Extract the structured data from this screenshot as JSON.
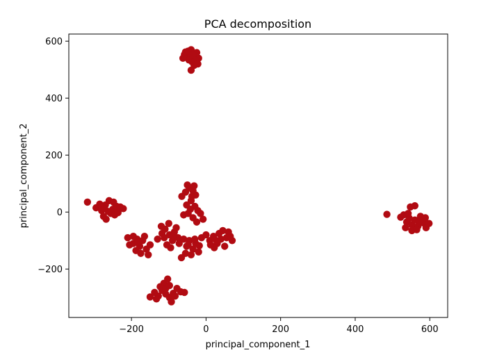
{
  "chart_data": {
    "type": "scatter",
    "title": "PCA decomposition",
    "xlabel": "principal_component_1",
    "ylabel": "principal_component_2",
    "xlim": [
      -368,
      648
    ],
    "ylim": [
      -370,
      625
    ],
    "xticks": [
      -200,
      0,
      200,
      400,
      600
    ],
    "yticks": [
      -200,
      0,
      200,
      400,
      600
    ],
    "xtick_labels": [
      "−200",
      "0",
      "200",
      "400",
      "600"
    ],
    "ytick_labels": [
      "−200",
      "0",
      "200",
      "400",
      "600"
    ],
    "grid": false,
    "marker_color": "#b10b12",
    "series": [
      {
        "points": [
          [
            -58,
            553
          ],
          [
            -50,
            548
          ],
          [
            -42,
            556
          ],
          [
            -35,
            545
          ],
          [
            -28,
            552
          ],
          [
            -20,
            540
          ],
          [
            -46,
            534
          ],
          [
            -38,
            528
          ],
          [
            -30,
            535
          ],
          [
            -55,
            562
          ],
          [
            -40,
            570
          ],
          [
            -25,
            560
          ],
          [
            -62,
            540
          ],
          [
            -32,
            515
          ],
          [
            -40,
            498
          ],
          [
            -22,
            520
          ],
          [
            -48,
            565
          ],
          [
            -36,
            552
          ],
          [
            -318,
            35
          ],
          [
            -295,
            15
          ],
          [
            -280,
            5
          ],
          [
            -270,
            25
          ],
          [
            -260,
            40
          ],
          [
            -250,
            10
          ],
          [
            -240,
            20
          ],
          [
            -255,
            -5
          ],
          [
            -275,
            -15
          ],
          [
            -268,
            -25
          ],
          [
            -245,
            -10
          ],
          [
            -230,
            18
          ],
          [
            -222,
            12
          ],
          [
            -262,
            2
          ],
          [
            -285,
            28
          ],
          [
            -248,
            35
          ],
          [
            -236,
            -2
          ],
          [
            -272,
            12
          ],
          [
            -210,
            -90
          ],
          [
            -195,
            -110
          ],
          [
            -185,
            -95
          ],
          [
            -178,
            -120
          ],
          [
            -170,
            -100
          ],
          [
            -160,
            -130
          ],
          [
            -150,
            -115
          ],
          [
            -188,
            -135
          ],
          [
            -175,
            -145
          ],
          [
            -195,
            -85
          ],
          [
            -205,
            -115
          ],
          [
            -165,
            -85
          ],
          [
            -155,
            -150
          ],
          [
            -182,
            -105
          ],
          [
            -130,
            -95
          ],
          [
            -118,
            -75
          ],
          [
            -110,
            -60
          ],
          [
            -98,
            -80
          ],
          [
            -90,
            -100
          ],
          [
            -105,
            -115
          ],
          [
            -85,
            -70
          ],
          [
            -75,
            -90
          ],
          [
            -120,
            -50
          ],
          [
            -100,
            -40
          ],
          [
            -80,
            -55
          ],
          [
            -95,
            -125
          ],
          [
            -112,
            -90
          ],
          [
            -88,
            -82
          ],
          [
            -72,
            -110
          ],
          [
            -60,
            -95
          ],
          [
            -52,
            -120
          ],
          [
            -45,
            -100
          ],
          [
            -35,
            -130
          ],
          [
            -28,
            -110
          ],
          [
            -20,
            -140
          ],
          [
            -12,
            -90
          ],
          [
            -55,
            -145
          ],
          [
            -40,
            -150
          ],
          [
            -66,
            -160
          ],
          [
            -30,
            -95
          ],
          [
            -48,
            -115
          ],
          [
            -18,
            -118
          ],
          [
            -65,
            55
          ],
          [
            -55,
            70
          ],
          [
            -45,
            85
          ],
          [
            -35,
            75
          ],
          [
            -28,
            60
          ],
          [
            -40,
            40
          ],
          [
            -52,
            25
          ],
          [
            -30,
            20
          ],
          [
            -22,
            5
          ],
          [
            -42,
            10
          ],
          [
            -60,
            -10
          ],
          [
            -35,
            -20
          ],
          [
            -25,
            -35
          ],
          [
            -15,
            -5
          ],
          [
            -8,
            -25
          ],
          [
            -48,
            -5
          ],
          [
            -38,
            55
          ],
          [
            -50,
            95
          ],
          [
            -32,
            92
          ],
          [
            0,
            -80
          ],
          [
            10,
            -100
          ],
          [
            20,
            -85
          ],
          [
            30,
            -110
          ],
          [
            40,
            -95
          ],
          [
            50,
            -120
          ],
          [
            60,
            -70
          ],
          [
            70,
            -100
          ],
          [
            55,
            -90
          ],
          [
            35,
            -75
          ],
          [
            22,
            -125
          ],
          [
            12,
            -115
          ],
          [
            45,
            -65
          ],
          [
            65,
            -85
          ],
          [
            28,
            -100
          ],
          [
            -150,
            -298
          ],
          [
            -138,
            -282
          ],
          [
            -128,
            -295
          ],
          [
            -118,
            -275
          ],
          [
            -108,
            -288
          ],
          [
            -98,
            -300
          ],
          [
            -88,
            -285
          ],
          [
            -78,
            -268
          ],
          [
            -68,
            -280
          ],
          [
            -113,
            -250
          ],
          [
            -103,
            -235
          ],
          [
            -123,
            -262
          ],
          [
            -93,
            -315
          ],
          [
            -83,
            -295
          ],
          [
            -58,
            -282
          ],
          [
            -133,
            -305
          ],
          [
            -108,
            -268
          ],
          [
            -98,
            -258
          ],
          [
            485,
            -8
          ],
          [
            522,
            -18
          ],
          [
            530,
            -10
          ],
          [
            538,
            -35
          ],
          [
            545,
            -22
          ],
          [
            552,
            -45
          ],
          [
            560,
            -28
          ],
          [
            568,
            -50
          ],
          [
            575,
            -15
          ],
          [
            582,
            -38
          ],
          [
            590,
            -55
          ],
          [
            598,
            -40
          ],
          [
            548,
            18
          ],
          [
            560,
            22
          ],
          [
            535,
            -55
          ],
          [
            552,
            -65
          ],
          [
            565,
            -62
          ],
          [
            588,
            -20
          ],
          [
            542,
            -5
          ],
          [
            572,
            -30
          ]
        ]
      }
    ]
  }
}
